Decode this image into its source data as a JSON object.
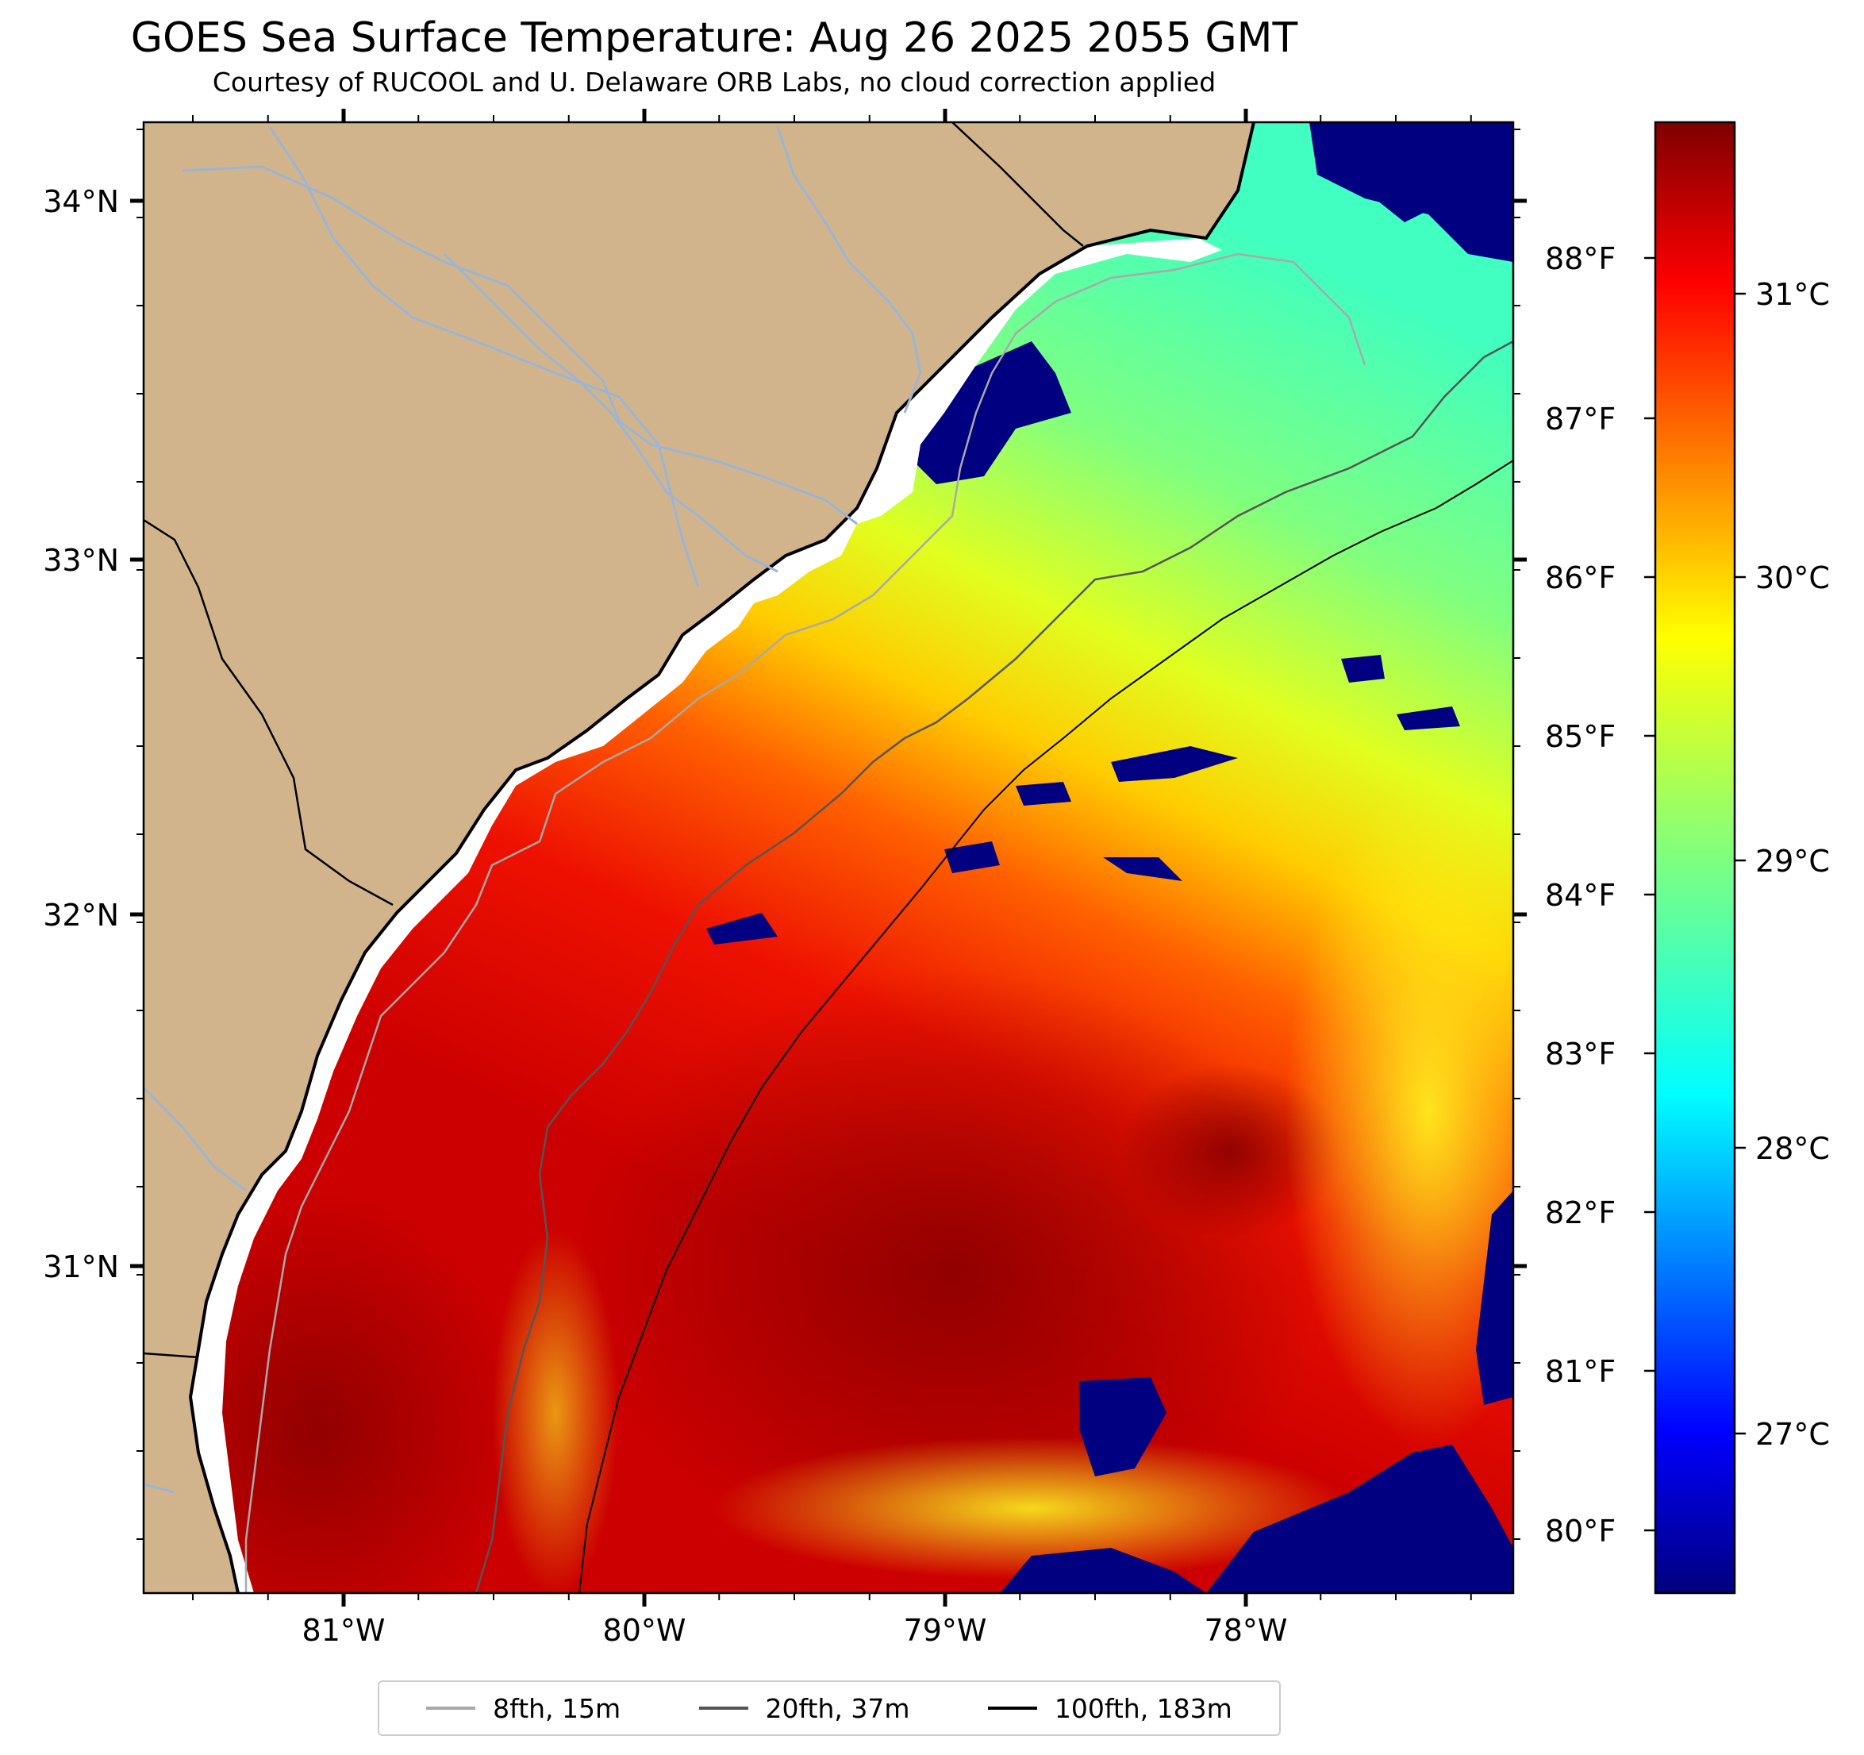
{
  "title": "GOES Sea Surface Temperature: Aug 26 2025 2055 GMT",
  "subtitle": "Courtesy of RUCOOL and U. Delaware ORB Labs, no cloud correction applied",
  "colors": {
    "land": "#d2b48c",
    "cloud_mask": "#000080",
    "contour_8fth": "#a9a9a9",
    "contour_20fth": "#555555",
    "contour_100fth": "#000000",
    "river": "#9bb4d4"
  },
  "lat_labels": [
    "34°N",
    "33°N",
    "32°N",
    "31°N"
  ],
  "lon_labels": [
    "81°W",
    "80°W",
    "79°W",
    "78°W"
  ],
  "colorbar": {
    "celsius": [
      "31°C",
      "30°C",
      "29°C",
      "28°C",
      "27°C"
    ],
    "fahrenheit": [
      "88°F",
      "87°F",
      "86°F",
      "85°F",
      "84°F",
      "83°F",
      "82°F",
      "81°F",
      "80°F"
    ],
    "colormap": "jet",
    "range_celsius": [
      26.5,
      31.6
    ]
  },
  "legend": [
    {
      "label": "8fth, 15m",
      "color": "#a9a9a9"
    },
    {
      "label": "20fth, 37m",
      "color": "#555555"
    },
    {
      "label": "100fth, 183m",
      "color": "#000000"
    }
  ]
}
